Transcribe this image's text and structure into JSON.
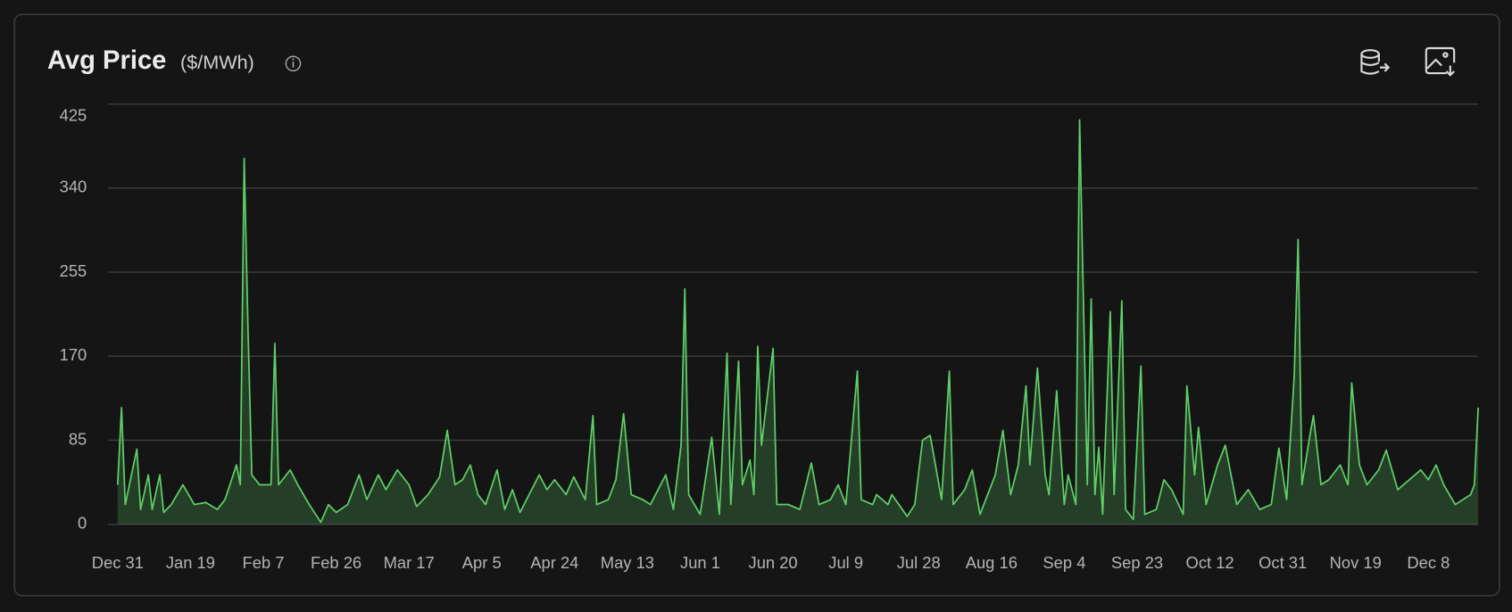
{
  "chart_data": {
    "type": "area",
    "title": "Avg Price",
    "unit": "($/MWh)",
    "x": [
      0,
      1,
      2,
      5,
      6,
      8,
      9,
      11,
      12,
      14,
      17,
      20,
      23,
      26,
      28,
      31,
      32,
      33,
      34,
      35,
      37,
      40,
      41,
      42,
      45,
      47,
      50,
      53,
      55,
      57,
      60,
      63,
      65,
      68,
      70,
      73,
      76,
      78,
      81,
      84,
      86,
      88,
      90,
      92,
      94,
      96,
      99,
      101,
      103,
      105,
      108,
      110,
      112,
      114,
      117,
      119,
      122,
      124,
      125,
      128,
      130,
      132,
      134,
      137,
      139,
      143,
      145,
      147,
      148,
      149,
      152,
      155,
      157,
      159,
      160,
      162,
      163,
      165,
      166,
      167,
      168,
      171,
      172,
      175,
      178,
      181,
      183,
      186,
      188,
      190,
      193,
      194,
      197,
      198,
      201,
      202,
      206,
      208,
      210,
      212,
      215,
      217,
      218,
      221,
      223,
      225,
      229,
      231,
      233,
      235,
      237,
      238,
      240,
      242,
      243,
      245,
      247,
      248,
      250,
      251,
      253,
      254,
      255,
      256,
      257,
      259,
      260,
      262,
      263,
      265,
      267,
      268,
      271,
      273,
      275,
      278,
      279,
      281,
      282,
      284,
      287,
      289,
      292,
      295,
      298,
      301,
      303,
      305,
      307,
      308,
      309,
      311,
      312,
      314,
      316,
      319,
      321,
      322,
      324,
      326,
      329,
      331,
      334,
      337,
      340,
      342,
      344,
      346,
      349,
      353,
      354,
      355
    ],
    "values": [
      40,
      118,
      20,
      76,
      15,
      50,
      15,
      50,
      12,
      20,
      40,
      20,
      22,
      15,
      25,
      60,
      40,
      370,
      200,
      50,
      40,
      40,
      183,
      40,
      55,
      40,
      20,
      2,
      20,
      12,
      20,
      50,
      25,
      50,
      35,
      55,
      40,
      18,
      30,
      48,
      95,
      40,
      45,
      60,
      30,
      20,
      55,
      15,
      35,
      12,
      35,
      50,
      35,
      45,
      30,
      48,
      25,
      110,
      20,
      25,
      45,
      112,
      30,
      25,
      20,
      50,
      15,
      80,
      238,
      30,
      10,
      88,
      10,
      173,
      20,
      165,
      40,
      65,
      30,
      180,
      80,
      178,
      20,
      20,
      15,
      62,
      20,
      25,
      40,
      20,
      155,
      25,
      20,
      30,
      20,
      30,
      8,
      20,
      85,
      90,
      25,
      155,
      20,
      35,
      55,
      10,
      50,
      95,
      30,
      60,
      140,
      60,
      158,
      50,
      30,
      135,
      20,
      50,
      20,
      409,
      40,
      228,
      30,
      78,
      10,
      215,
      30,
      226,
      15,
      5,
      160,
      10,
      15,
      45,
      35,
      10,
      140,
      50,
      98,
      20,
      60,
      80,
      20,
      35,
      15,
      20,
      77,
      25,
      150,
      288,
      40,
      88,
      110,
      40,
      45,
      60,
      40,
      143,
      60,
      40,
      55,
      75,
      35,
      45,
      55,
      45,
      60,
      40,
      20,
      30,
      40,
      118
    ],
    "color": "#5fd068",
    "xlim": [
      0,
      355
    ],
    "xticks": [
      {
        "value": 0,
        "label": "Dec 31"
      },
      {
        "value": 19,
        "label": "Jan 19"
      },
      {
        "value": 38,
        "label": "Feb 7"
      },
      {
        "value": 57,
        "label": "Feb 26"
      },
      {
        "value": 76,
        "label": "Mar 17"
      },
      {
        "value": 95,
        "label": "Apr 5"
      },
      {
        "value": 114,
        "label": "Apr 24"
      },
      {
        "value": 133,
        "label": "May 13"
      },
      {
        "value": 152,
        "label": "Jun 1"
      },
      {
        "value": 171,
        "label": "Jun 20"
      },
      {
        "value": 190,
        "label": "Jul 9"
      },
      {
        "value": 209,
        "label": "Jul 28"
      },
      {
        "value": 228,
        "label": "Aug 16"
      },
      {
        "value": 247,
        "label": "Sep 4"
      },
      {
        "value": 266,
        "label": "Sep 23"
      },
      {
        "value": 285,
        "label": "Oct 12"
      },
      {
        "value": 304,
        "label": "Oct 31"
      },
      {
        "value": 323,
        "label": "Nov 19"
      },
      {
        "value": 342,
        "label": "Dec 8"
      }
    ],
    "ylim": [
      0,
      425
    ],
    "yticks": [
      0,
      85,
      170,
      255,
      340,
      425
    ],
    "grid": true
  }
}
